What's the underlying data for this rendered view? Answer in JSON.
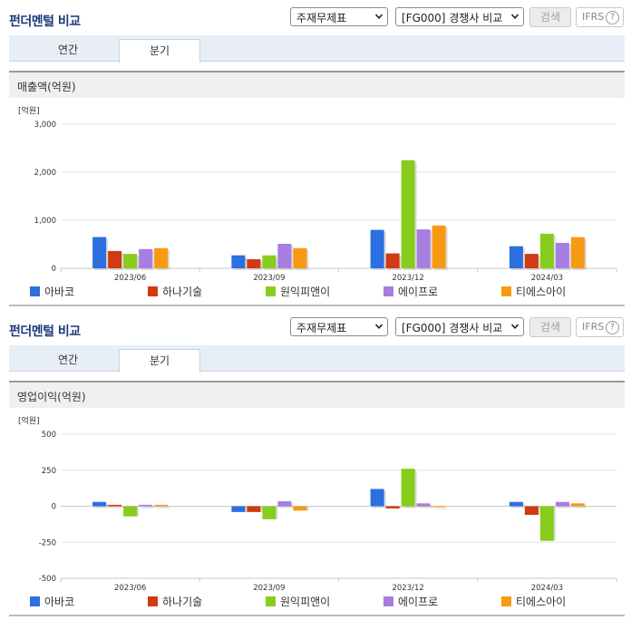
{
  "sections": [
    {
      "title": "펀더멘털 비교",
      "select_statement": "주재무제표",
      "select_compare": "[FG000] 경쟁사 비교",
      "search_label": "검색",
      "ifrs_label": "IFRS",
      "help_label": "?",
      "tabs": [
        {
          "label": "연간"
        },
        {
          "label": "분기"
        }
      ],
      "active_tab": "분기",
      "chart_title": "매출액(억원)"
    },
    {
      "title": "펀더멘털 비교",
      "select_statement": "주재무제표",
      "select_compare": "[FG000] 경쟁사 비교",
      "search_label": "검색",
      "ifrs_label": "IFRS",
      "help_label": "?",
      "tabs": [
        {
          "label": "연간"
        },
        {
          "label": "분기"
        }
      ],
      "active_tab": "분기",
      "chart_title": "영업이익(억원)"
    }
  ],
  "colors": {
    "아바코": "#2b6fe0",
    "하나기술": "#d13a12",
    "원익피앤이": "#88cc1c",
    "에이프로": "#a87de0",
    "티에스아이": "#f79a12"
  },
  "chart_data": [
    {
      "type": "bar",
      "unit_label": "[억원]",
      "categories": [
        "2023/06",
        "2023/09",
        "2023/12",
        "2024/03"
      ],
      "ylim": [
        0,
        3000
      ],
      "yticks": [
        0,
        1000,
        2000,
        3000
      ],
      "ytick_labels": [
        "0",
        "1,000",
        "2,000",
        "3,000"
      ],
      "legend_position": "bottom",
      "series": [
        {
          "name": "아바코",
          "values": [
            650,
            270,
            800,
            460
          ]
        },
        {
          "name": "하나기술",
          "values": [
            360,
            190,
            310,
            300
          ]
        },
        {
          "name": "원익피앤이",
          "values": [
            300,
            270,
            2250,
            720
          ]
        },
        {
          "name": "에이프로",
          "values": [
            400,
            510,
            810,
            530
          ]
        },
        {
          "name": "티에스아이",
          "values": [
            420,
            420,
            890,
            650
          ]
        }
      ]
    },
    {
      "type": "bar",
      "unit_label": "[억원]",
      "categories": [
        "2023/06",
        "2023/09",
        "2023/12",
        "2024/03"
      ],
      "ylim": [
        -500,
        500
      ],
      "yticks": [
        -500,
        -250,
        0,
        250,
        500
      ],
      "ytick_labels": [
        "-500",
        "-250",
        "0",
        "250",
        "500"
      ],
      "legend_position": "bottom",
      "series": [
        {
          "name": "아바코",
          "values": [
            30,
            -40,
            120,
            30
          ]
        },
        {
          "name": "하나기술",
          "values": [
            10,
            -40,
            -15,
            -60
          ]
        },
        {
          "name": "원익피앤이",
          "values": [
            -70,
            -90,
            260,
            -240
          ]
        },
        {
          "name": "에이프로",
          "values": [
            10,
            35,
            20,
            30
          ]
        },
        {
          "name": "티에스아이",
          "values": [
            10,
            -30,
            0,
            20
          ]
        }
      ]
    }
  ]
}
